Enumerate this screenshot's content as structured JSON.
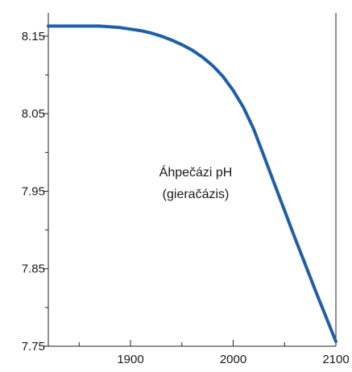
{
  "chart_data": {
    "type": "line",
    "title": "",
    "xlabel": "",
    "ylabel": "",
    "xlim": [
      1820,
      2100
    ],
    "ylim": [
      7.75,
      8.18
    ],
    "x_ticks_major": [
      1900,
      2000,
      2100
    ],
    "x_tick_labels": [
      "1900",
      "2000",
      "2100"
    ],
    "x_ticks_minor": [
      1850,
      1950,
      2050
    ],
    "y_ticks_major": [
      7.75,
      7.85,
      7.95,
      8.05,
      8.15
    ],
    "y_tick_labels": [
      "7.75",
      "7.85",
      "7.95",
      "8.05",
      "8.15"
    ],
    "y_ticks_minor": [
      7.8,
      7.9,
      8.0,
      8.1
    ],
    "grid": false,
    "annotation": [
      "Áhpečázi pH",
      "(gieračázis)"
    ],
    "line_color": "#1f5fa8",
    "series": [
      {
        "x": [
          1820,
          1840,
          1860,
          1870,
          1880,
          1890,
          1900,
          1910,
          1920,
          1930,
          1940,
          1950,
          1960,
          1970,
          1980,
          1990,
          2000,
          2010,
          2020,
          2030,
          2040,
          2050,
          2060,
          2070,
          2080,
          2090,
          2100
        ],
        "values": [
          8.163,
          8.163,
          8.163,
          8.163,
          8.162,
          8.161,
          8.159,
          8.157,
          8.154,
          8.15,
          8.145,
          8.139,
          8.132,
          8.123,
          8.112,
          8.098,
          8.08,
          8.058,
          8.03,
          7.995,
          7.96,
          7.925,
          7.89,
          7.856,
          7.822,
          7.789,
          7.756
        ]
      }
    ]
  }
}
